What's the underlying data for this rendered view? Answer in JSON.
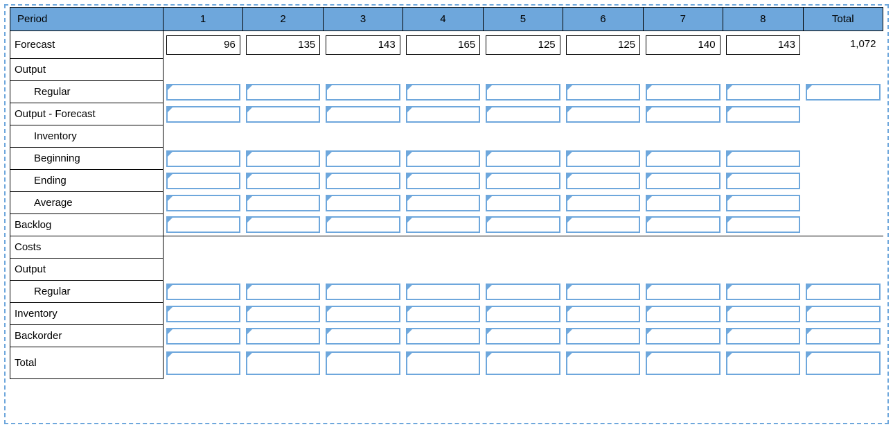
{
  "colors": {
    "accent": "#6ea7dc",
    "dashed_border": "#6ea7dc",
    "grid_border": "#000000",
    "background": "#ffffff",
    "text": "#000000"
  },
  "periods": [
    "1",
    "2",
    "3",
    "4",
    "5",
    "6",
    "7",
    "8"
  ],
  "header": {
    "label": "Period",
    "total": "Total"
  },
  "forecast": {
    "label": "Forecast",
    "values": [
      "96",
      "135",
      "143",
      "165",
      "125",
      "125",
      "140",
      "143"
    ],
    "total": "1,072"
  },
  "rows": [
    {
      "key": "output_hdr",
      "label": "Output",
      "indent": 0,
      "periods": "none",
      "total": "none"
    },
    {
      "key": "regular",
      "label": "Regular",
      "indent": 2,
      "periods": "input",
      "total": "input"
    },
    {
      "key": "out_minus_fc",
      "label": "Output - Forecast",
      "indent": 0,
      "periods": "input",
      "total": "none"
    },
    {
      "key": "inventory_hdr",
      "label": "Inventory",
      "indent": 2,
      "periods": "none",
      "total": "none"
    },
    {
      "key": "beginning",
      "label": "Beginning",
      "indent": 2,
      "periods": "input",
      "total": "none"
    },
    {
      "key": "ending",
      "label": "Ending",
      "indent": 2,
      "periods": "input",
      "total": "none"
    },
    {
      "key": "average",
      "label": "Average",
      "indent": 2,
      "periods": "input",
      "total": "none"
    },
    {
      "key": "backlog",
      "label": "Backlog",
      "indent": 0,
      "periods": "input",
      "total": "none"
    },
    {
      "key": "costs_hdr",
      "label": "Costs",
      "indent": 0,
      "periods": "none",
      "total": "none",
      "sectline": true
    },
    {
      "key": "output_hdr2",
      "label": "Output",
      "indent": 0,
      "periods": "none",
      "total": "none"
    },
    {
      "key": "regular2",
      "label": "Regular",
      "indent": 2,
      "periods": "input",
      "total": "input"
    },
    {
      "key": "inventory_cost",
      "label": "Inventory",
      "indent": 0,
      "periods": "input",
      "total": "input"
    },
    {
      "key": "backorder",
      "label": "Backorder",
      "indent": 0,
      "periods": "input",
      "total": "input"
    },
    {
      "key": "total",
      "label": "Total",
      "indent": 0,
      "periods": "input",
      "total": "input",
      "tall": true
    }
  ]
}
